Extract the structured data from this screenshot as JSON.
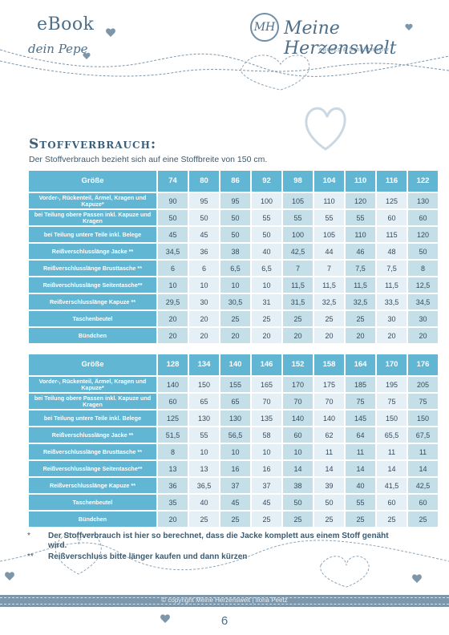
{
  "header": {
    "ebook": "eBook",
    "subtitle": "dein Pepe",
    "logo_mark": "MH",
    "brand": "Meine Herzenswelt",
    "tagline": "eBooks & Schnittmuster"
  },
  "title": "Stoffverbrauch:",
  "intro": "Der Stoffverbrauch bezieht sich auf eine Stoffbreite von 150 cm.",
  "tables": [
    {
      "header_label": "Größe",
      "sizes": [
        "74",
        "80",
        "86",
        "92",
        "98",
        "104",
        "110",
        "116",
        "122"
      ],
      "rows": [
        {
          "label": "Vorder-, Rückenteil, Ärmel, Kragen und Kapuze*",
          "values": [
            "90",
            "95",
            "95",
            "100",
            "105",
            "110",
            "120",
            "125",
            "130"
          ]
        },
        {
          "label": "bei Teilung obere Passen inkl. Kapuze und Kragen",
          "values": [
            "50",
            "50",
            "50",
            "55",
            "55",
            "55",
            "55",
            "60",
            "60"
          ]
        },
        {
          "label": "bei Teilung untere Teile inkl. Belege",
          "values": [
            "45",
            "45",
            "50",
            "50",
            "100",
            "105",
            "110",
            "115",
            "120"
          ]
        },
        {
          "label": "Reißverschlusslänge Jacke **",
          "values": [
            "34,5",
            "36",
            "38",
            "40",
            "42,5",
            "44",
            "46",
            "48",
            "50"
          ]
        },
        {
          "label": "Reißverschlusslänge Brusttasche **",
          "values": [
            "6",
            "6",
            "6,5",
            "6,5",
            "7",
            "7",
            "7,5",
            "7,5",
            "8"
          ]
        },
        {
          "label": "Reißverschlusslänge Seitentasche**",
          "values": [
            "10",
            "10",
            "10",
            "10",
            "11,5",
            "11,5",
            "11,5",
            "11,5",
            "12,5"
          ]
        },
        {
          "label": "Reißverschlusslänge Kapuze **",
          "values": [
            "29,5",
            "30",
            "30,5",
            "31",
            "31,5",
            "32,5",
            "32,5",
            "33,5",
            "34,5"
          ]
        },
        {
          "label": "Taschenbeutel",
          "values": [
            "20",
            "20",
            "25",
            "25",
            "25",
            "25",
            "25",
            "30",
            "30"
          ]
        },
        {
          "label": "Bündchen",
          "values": [
            "20",
            "20",
            "20",
            "20",
            "20",
            "20",
            "20",
            "20",
            "20"
          ]
        }
      ]
    },
    {
      "header_label": "Größe",
      "sizes": [
        "128",
        "134",
        "140",
        "146",
        "152",
        "158",
        "164",
        "170",
        "176"
      ],
      "rows": [
        {
          "label": "Vorder-, Rückenteil, Ärmel, Kragen und Kapuze*",
          "values": [
            "140",
            "150",
            "155",
            "165",
            "170",
            "175",
            "185",
            "195",
            "205"
          ]
        },
        {
          "label": "bei Teilung obere Passen inkl. Kapuze und Kragen",
          "values": [
            "60",
            "65",
            "65",
            "70",
            "70",
            "70",
            "75",
            "75",
            "75"
          ]
        },
        {
          "label": "bei Teilung untere Teile inkl. Belege",
          "values": [
            "125",
            "130",
            "130",
            "135",
            "140",
            "140",
            "145",
            "150",
            "150"
          ]
        },
        {
          "label": "Reißverschlusslänge Jacke **",
          "values": [
            "51,5",
            "55",
            "56,5",
            "58",
            "60",
            "62",
            "64",
            "65,5",
            "67,5"
          ]
        },
        {
          "label": "Reißverschlusslänge Brusttasche **",
          "values": [
            "8",
            "10",
            "10",
            "10",
            "10",
            "11",
            "11",
            "11",
            "11"
          ]
        },
        {
          "label": "Reißverschlusslänge Seitentasche**",
          "values": [
            "13",
            "13",
            "16",
            "16",
            "14",
            "14",
            "14",
            "14",
            "14"
          ]
        },
        {
          "label": "Reißverschlusslänge Kapuze **",
          "values": [
            "36",
            "36,5",
            "37",
            "37",
            "38",
            "39",
            "40",
            "41,5",
            "42,5"
          ]
        },
        {
          "label": "Taschenbeutel",
          "values": [
            "35",
            "40",
            "45",
            "45",
            "50",
            "50",
            "55",
            "60",
            "60"
          ]
        },
        {
          "label": "Bündchen",
          "values": [
            "20",
            "25",
            "25",
            "25",
            "25",
            "25",
            "25",
            "25",
            "25"
          ]
        }
      ]
    }
  ],
  "notes": [
    {
      "mark": "*",
      "text": "Der Stoffverbrauch ist hier so berechnet, dass die Jacke komplett aus einem Stoff genäht wird."
    },
    {
      "mark": "**",
      "text": "Reißverschluss bitte länger kaufen und dann kürzen"
    }
  ],
  "footer": {
    "copyright": "© copyright Meine Herzenswelt | Ilona Peetz",
    "page": "6"
  },
  "colors": {
    "header_cell": "#61b6d4",
    "value_dark": "#c5dfe9",
    "value_light": "#e4f0f5",
    "text": "#3e5a6e"
  },
  "icons": [
    "heart-icon",
    "dashed-thread-icon"
  ]
}
